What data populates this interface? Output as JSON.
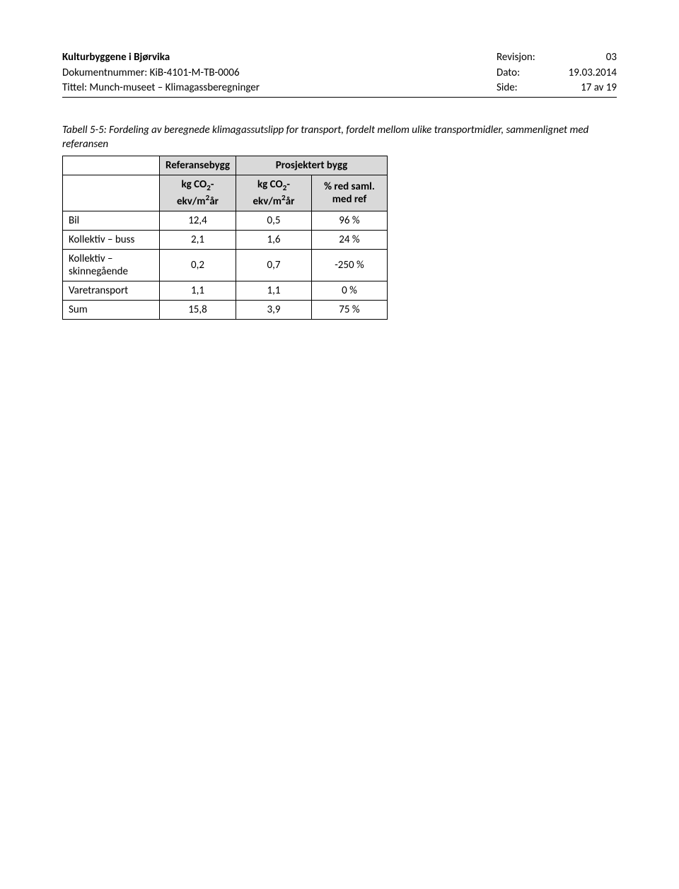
{
  "header": {
    "row1_left": "Kulturbyggene i Bjørvika",
    "row1_label": "Revisjon:",
    "row1_value": "03",
    "row2_left": "Dokumentnummer: KiB-4101-M-TB-0006",
    "row2_label": "Dato:",
    "row2_value": "19.03.2014",
    "row3_left": "Tittel: Munch-museet – Klimagassberegninger",
    "row3_label": "Side:",
    "row3_value": "17 av 19"
  },
  "caption": "Tabell 5-5: Fordeling av beregnede klimagassutslipp for transport, fordelt mellom ulike transportmidler, sammenlignet med referansen",
  "table": {
    "header_ref": "Referansebygg",
    "header_proj": "Prosjektert bygg",
    "unit_prefix": "kg CO",
    "unit_sub": "2",
    "unit_suffix": "-\nekv/m",
    "unit_sup": "2",
    "unit_tail": "år",
    "pct_header": "% red saml.\nmed ref",
    "rows": [
      {
        "label": "Bil",
        "ref": "12,4",
        "proj": "0,5",
        "pct": "96 %"
      },
      {
        "label": "Kollektiv – buss",
        "ref": "2,1",
        "proj": "1,6",
        "pct": "24 %"
      },
      {
        "label": "Kollektiv –\nskinnegående",
        "ref": "0,2",
        "proj": "0,7",
        "pct": "-250 %"
      },
      {
        "label": "Varetransport",
        "ref": "1,1",
        "proj": "1,1",
        "pct": "0 %"
      },
      {
        "label": "Sum",
        "ref": "15,8",
        "proj": "3,9",
        "pct": "75 %"
      }
    ]
  }
}
